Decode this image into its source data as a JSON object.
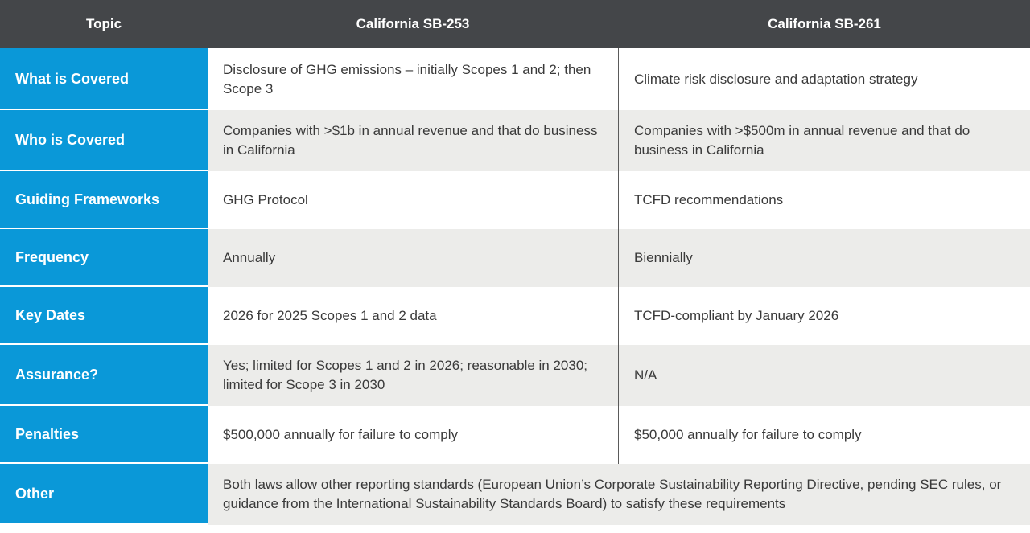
{
  "table": {
    "headers": {
      "topic": "Topic",
      "sb253": "California SB-253",
      "sb261": "California SB-261"
    },
    "rows": [
      {
        "topic": "What is Covered",
        "sb253": "Disclosure of GHG emissions – initially Scopes 1 and 2; then Scope 3",
        "sb261": "Climate risk disclosure and adaptation strategy"
      },
      {
        "topic": "Who is Covered",
        "sb253": "Companies with >$1b in annual revenue and that do business in California",
        "sb261": "Companies with >$500m in annual revenue and that do business in California"
      },
      {
        "topic": "Guiding Frameworks",
        "sb253": "GHG Protocol",
        "sb261": "TCFD recommendations"
      },
      {
        "topic": "Frequency",
        "sb253": "Annually",
        "sb261": "Biennially"
      },
      {
        "topic": "Key Dates",
        "sb253": "2026 for 2025 Scopes 1 and 2 data",
        "sb261": "TCFD-compliant by January 2026"
      },
      {
        "topic": "Assurance?",
        "sb253": "Yes; limited for Scopes 1 and 2 in 2026; reasonable in 2030; limited for Scope 3 in 2030",
        "sb261": "N/A"
      },
      {
        "topic": "Penalties",
        "sb253": "$500,000 annually for failure to comply",
        "sb261": "$50,000 annually for failure to comply"
      }
    ],
    "other": {
      "topic": "Other",
      "text": "Both laws allow other reporting standards (European Union’s Corporate Sustainability Reporting Directive, pending SEC rules, or guidance from the International Sustainability Standards Board) to satisfy these requirements"
    }
  }
}
